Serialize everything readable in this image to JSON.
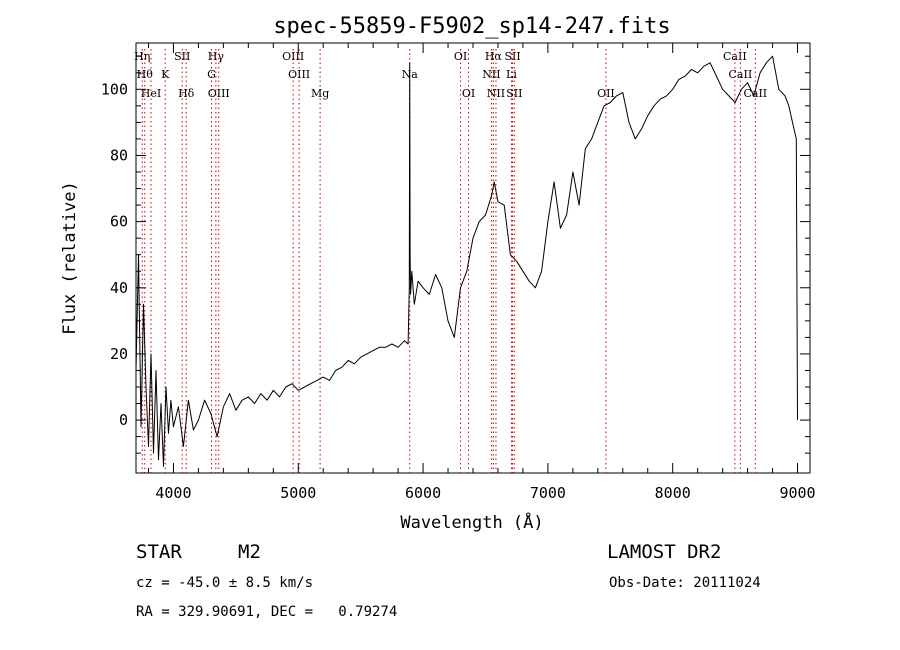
{
  "chart_data": {
    "type": "line",
    "title": "spec-55859-F5902_sp14-247.fits",
    "xlabel": "Wavelength (Å)",
    "ylabel": "Flux (relative)",
    "xlim": [
      3700,
      9100
    ],
    "ylim": [
      -16,
      114
    ],
    "x_ticks": [
      4000,
      5000,
      6000,
      7000,
      8000,
      9000
    ],
    "y_ticks": [
      0,
      20,
      40,
      60,
      80,
      100
    ],
    "grid": false,
    "line_color": "#000000",
    "marker_line_color": "#cc0000",
    "series": [
      {
        "x": [
          3700,
          3720,
          3740,
          3760,
          3780,
          3800,
          3820,
          3840,
          3860,
          3880,
          3900,
          3920,
          3940,
          3960,
          3980,
          4000,
          4040,
          4080,
          4120,
          4160,
          4200,
          4250,
          4300,
          4350,
          4400,
          4450,
          4500,
          4550,
          4600,
          4650,
          4700,
          4750,
          4800,
          4850,
          4900,
          4950,
          5000,
          5050,
          5100,
          5150,
          5200,
          5250,
          5300,
          5350,
          5400,
          5450,
          5500,
          5550,
          5600,
          5650,
          5700,
          5750,
          5800,
          5850,
          5880,
          5890,
          5893,
          5896,
          5900,
          5910,
          5930,
          5960,
          6000,
          6050,
          6100,
          6150,
          6200,
          6250,
          6300,
          6350,
          6400,
          6450,
          6500,
          6550,
          6570,
          6600,
          6650,
          6700,
          6750,
          6800,
          6850,
          6900,
          6950,
          7000,
          7050,
          7100,
          7150,
          7200,
          7250,
          7300,
          7350,
          7400,
          7450,
          7500,
          7550,
          7600,
          7650,
          7700,
          7750,
          7800,
          7850,
          7900,
          7950,
          8000,
          8050,
          8100,
          8150,
          8200,
          8250,
          8300,
          8350,
          8400,
          8450,
          8500,
          8550,
          8600,
          8650,
          8700,
          8750,
          8800,
          8850,
          8900,
          8930,
          8960,
          8990,
          9000
        ],
        "y": [
          15,
          50,
          -2,
          35,
          10,
          -8,
          20,
          -10,
          15,
          -12,
          5,
          -14,
          10,
          -4,
          6,
          -2,
          4,
          -8,
          6,
          -3,
          0,
          6,
          2,
          -5,
          4,
          8,
          3,
          6,
          7,
          5,
          8,
          6,
          9,
          7,
          10,
          11,
          9,
          10,
          11,
          12,
          13,
          12,
          15,
          16,
          18,
          17,
          19,
          20,
          21,
          22,
          22,
          23,
          22,
          24,
          23,
          40,
          108,
          50,
          38,
          45,
          35,
          42,
          40,
          38,
          44,
          40,
          30,
          25,
          40,
          45,
          55,
          60,
          62,
          68,
          72,
          66,
          65,
          50,
          48,
          45,
          42,
          40,
          45,
          60,
          72,
          58,
          62,
          75,
          65,
          82,
          85,
          90,
          95,
          96,
          98,
          99,
          90,
          85,
          88,
          92,
          95,
          97,
          98,
          100,
          103,
          104,
          106,
          105,
          107,
          108,
          104,
          100,
          98,
          96,
          100,
          102,
          98,
          105,
          108,
          110,
          100,
          98,
          95,
          90,
          85,
          0
        ]
      }
    ],
    "line_markers": [
      {
        "x": 3750,
        "label": "Hη",
        "row": 1
      },
      {
        "x": 3770,
        "label": "Hθ",
        "row": 2
      },
      {
        "x": 3820,
        "label": "HeI",
        "row": 3
      },
      {
        "x": 3934,
        "label": "K",
        "row": 2
      },
      {
        "x": 4070,
        "label": "SII",
        "row": 1
      },
      {
        "x": 4102,
        "label": "Hδ",
        "row": 3
      },
      {
        "x": 4340,
        "label": "Hγ",
        "row": 1
      },
      {
        "x": 4305,
        "label": "G",
        "row": 2
      },
      {
        "x": 4363,
        "label": "OIII",
        "row": 3
      },
      {
        "x": 4959,
        "label": "OIII",
        "row": 1
      },
      {
        "x": 5007,
        "label": "OIII",
        "row": 2
      },
      {
        "x": 5175,
        "label": "Mg",
        "row": 3
      },
      {
        "x": 5893,
        "label": "Na",
        "row": 2
      },
      {
        "x": 6300,
        "label": "OI",
        "row": 1
      },
      {
        "x": 6364,
        "label": "OI",
        "row": 3
      },
      {
        "x": 6563,
        "label": "Hα",
        "row": 1
      },
      {
        "x": 6548,
        "label": "NII",
        "row": 2
      },
      {
        "x": 6584,
        "label": "NII",
        "row": 3
      },
      {
        "x": 6717,
        "label": "SII",
        "row": 1
      },
      {
        "x": 6708,
        "label": "Li",
        "row": 2
      },
      {
        "x": 6731,
        "label": "SII",
        "row": 3
      },
      {
        "x": 7465,
        "label": "OII",
        "row": 3
      },
      {
        "x": 8498,
        "label": "CaII",
        "row": 1
      },
      {
        "x": 8542,
        "label": "CaII",
        "row": 2
      },
      {
        "x": 8662,
        "label": "CaII",
        "row": 3
      }
    ]
  },
  "info": {
    "object_type": "STAR",
    "subclass": "M2",
    "survey": "LAMOST DR2",
    "redshift": "cz = -45.0 ± 8.5 km/s",
    "obs_date": "Obs-Date: 20111024",
    "coordinates": "RA = 329.90691, DEC =   0.79274"
  }
}
